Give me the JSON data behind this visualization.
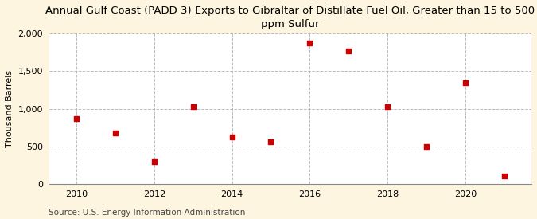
{
  "title": "Annual Gulf Coast (PADD 3) Exports to Gibraltar of Distillate Fuel Oil, Greater than 15 to 500\nppm Sulfur",
  "ylabel": "Thousand Barrels",
  "source": "Source: U.S. Energy Information Administration",
  "years": [
    2010,
    2011,
    2012,
    2013,
    2014,
    2015,
    2016,
    2017,
    2018,
    2019,
    2020,
    2021
  ],
  "values": [
    875,
    675,
    300,
    1025,
    625,
    560,
    1875,
    1775,
    1025,
    500,
    1350,
    110
  ],
  "marker_color": "#cc0000",
  "marker": "s",
  "marker_size": 5,
  "ylim": [
    0,
    2000
  ],
  "yticks": [
    0,
    500,
    1000,
    1500,
    2000
  ],
  "xticks": [
    2010,
    2012,
    2014,
    2016,
    2018,
    2020
  ],
  "xlim": [
    2009.3,
    2021.7
  ],
  "background_color": "#fdf5e0",
  "plot_bg_color": "#ffffff",
  "grid_color": "#aaaaaa",
  "title_fontsize": 9.5,
  "label_fontsize": 8,
  "tick_fontsize": 8,
  "source_fontsize": 7.5
}
